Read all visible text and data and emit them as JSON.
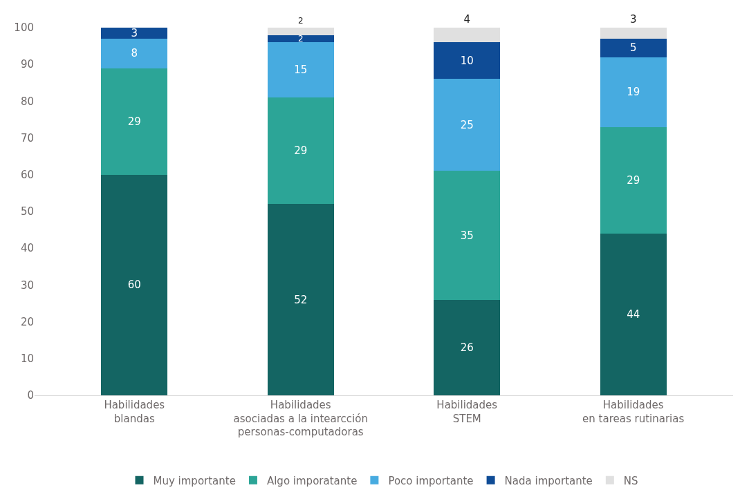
{
  "chart_data": {
    "type": "bar",
    "stacked": true,
    "categories": [
      "Habilidades\nblandas",
      "Habilidades\nasociadas a la intearcción\npersonas-computadoras",
      "Habilidades\nSTEM",
      "Habilidades\nen tareas rutinarias"
    ],
    "series": [
      {
        "name": "Muy importante",
        "color": "#146563",
        "values": [
          60,
          52,
          26,
          44
        ]
      },
      {
        "name": "Algo imporatante",
        "color": "#2ca597",
        "values": [
          29,
          29,
          35,
          29
        ]
      },
      {
        "name": "Poco importante",
        "color": "#47abe0",
        "values": [
          8,
          15,
          25,
          19
        ]
      },
      {
        "name": "Nada importante",
        "color": "#0f4c96",
        "values": [
          3,
          2,
          10,
          5
        ]
      },
      {
        "name": "NS",
        "color": "#e0e0e0",
        "values": [
          null,
          2,
          4,
          3
        ]
      }
    ],
    "data_labels": true,
    "ylim": [
      0,
      100
    ],
    "yticks": [
      0,
      10,
      20,
      30,
      40,
      50,
      60,
      70,
      80,
      90,
      100
    ],
    "legend": "bottom"
  }
}
